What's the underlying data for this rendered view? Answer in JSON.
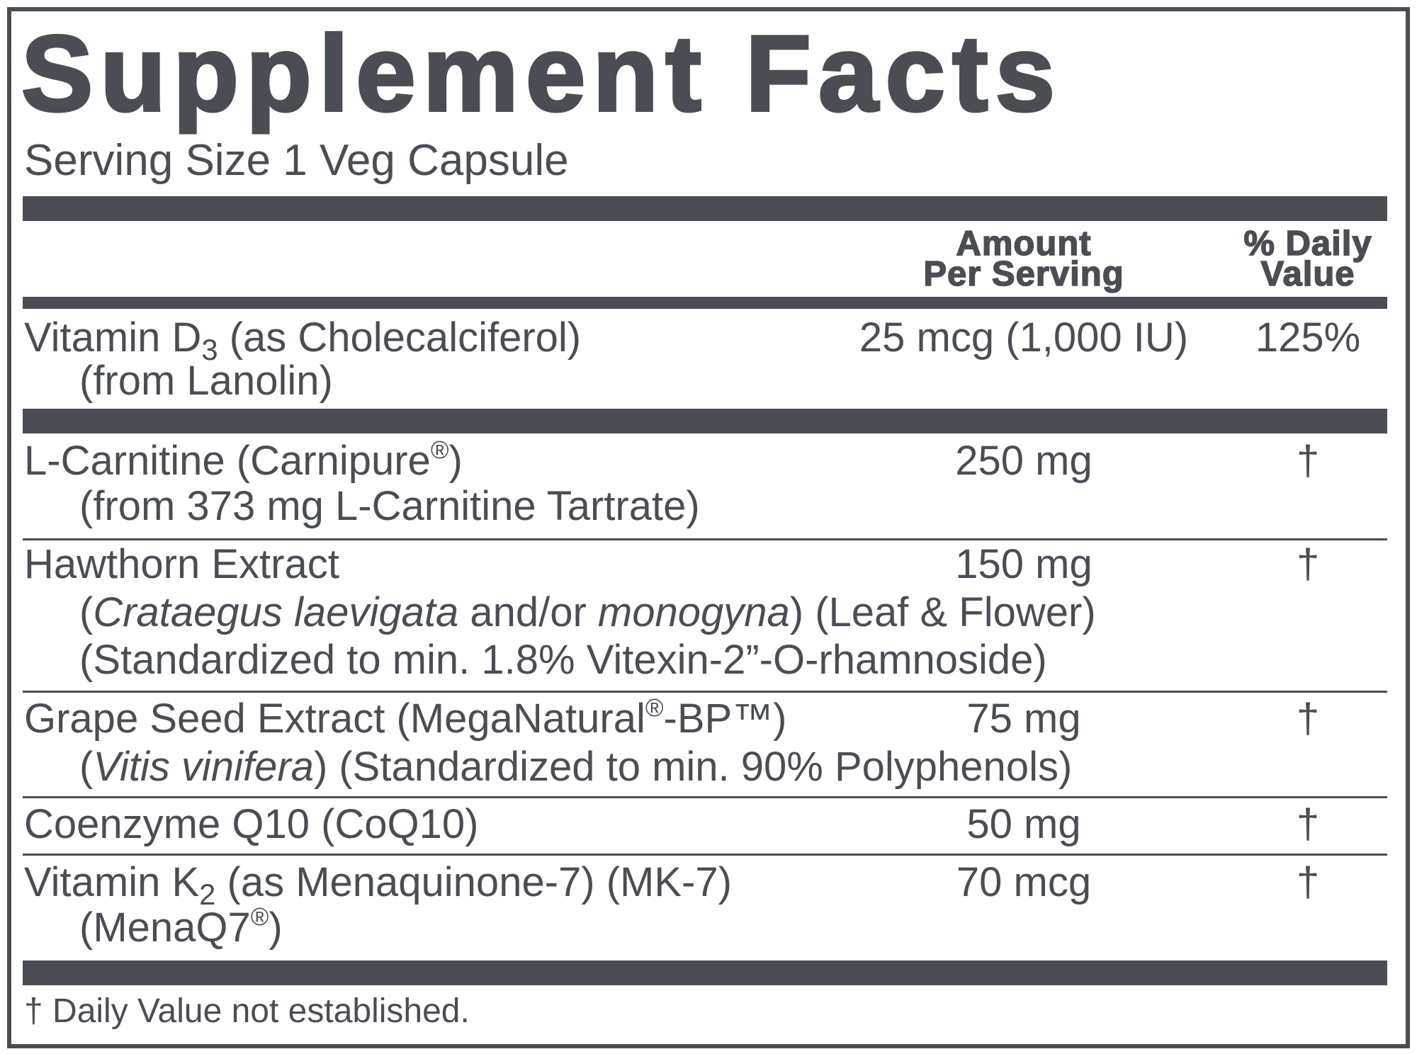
{
  "title": "Supplement Facts",
  "serving_size": "Serving Size 1 Veg Capsule",
  "header": {
    "amount": [
      "Amount",
      "Per Serving"
    ],
    "daily_value": [
      "% Daily",
      "Value"
    ]
  },
  "rows": [
    {
      "name": [
        [
          "Vitamin D",
          "3",
          " (as Cholecalciferol)"
        ],
        [
          "(from Lanolin)"
        ]
      ],
      "amount": "25 mcg (1,000 IU)",
      "daily_value": "125%"
    },
    {
      "name": [
        [
          "L-Carnitine (Carnipure",
          "®",
          ")"
        ],
        [
          "(from 373 mg L-Carnitine Tartrate)"
        ]
      ],
      "amount": "250 mg",
      "daily_value": "†"
    },
    {
      "name": [
        [
          "Hawthorn Extract"
        ],
        [
          "(",
          "Crataegus laevigata",
          " and/or ",
          "monogyna",
          ") (Leaf & Flower)"
        ],
        [
          "(Standardized to min. 1.8% Vitexin-2”-O-rhamnoside)"
        ]
      ],
      "amount": "150 mg",
      "daily_value": "†"
    },
    {
      "name": [
        [
          "Grape Seed Extract (MegaNatural",
          "®",
          "-BP™)"
        ],
        [
          "(",
          "Vitis vinifera",
          ") (Standardized to min. 90% Polyphenols)"
        ]
      ],
      "amount": "75 mg",
      "daily_value": "†"
    },
    {
      "name": [
        [
          "Coenzyme Q10 (CoQ10)"
        ]
      ],
      "amount": "50 mg",
      "daily_value": "†"
    },
    {
      "name": [
        [
          "Vitamin K",
          "2",
          " (as Menaquinone-7) (MK-7)"
        ],
        [
          "(MenaQ7",
          "®",
          ")"
        ]
      ],
      "amount": "70 mcg",
      "daily_value": "†"
    }
  ],
  "footnote": "† Daily Value not established."
}
